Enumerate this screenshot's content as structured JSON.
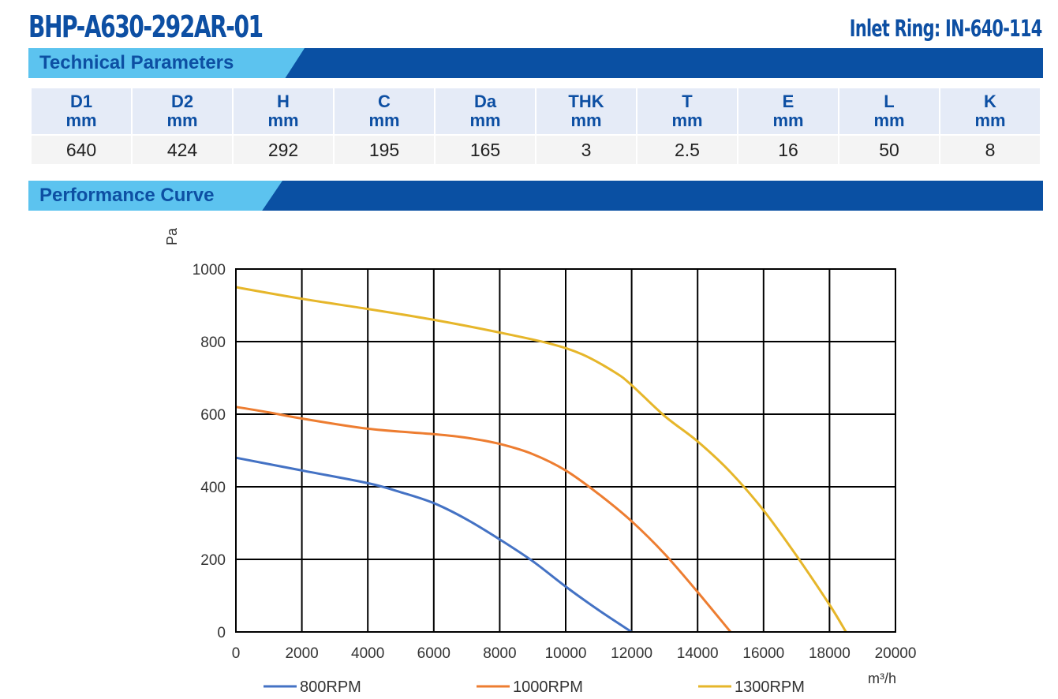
{
  "header": {
    "model": "BHP-A630-292AR-01",
    "inlet_ring": "Inlet Ring: IN-640-114"
  },
  "sections": {
    "technical": "Technical Parameters",
    "performance": "Performance Curve"
  },
  "colors": {
    "brand_blue": "#0a50a3",
    "tab_light_blue": "#5cc3ef"
  },
  "params": {
    "columns": [
      {
        "name": "D1",
        "unit": "mm",
        "value": "640"
      },
      {
        "name": "D2",
        "unit": "mm",
        "value": "424"
      },
      {
        "name": "H",
        "unit": "mm",
        "value": "292"
      },
      {
        "name": "C",
        "unit": "mm",
        "value": "195"
      },
      {
        "name": "Da",
        "unit": "mm",
        "value": "165"
      },
      {
        "name": "THK",
        "unit": "mm",
        "value": "3"
      },
      {
        "name": "T",
        "unit": "mm",
        "value": "2.5"
      },
      {
        "name": "E",
        "unit": "mm",
        "value": "16"
      },
      {
        "name": "L",
        "unit": "mm",
        "value": "50"
      },
      {
        "name": "K",
        "unit": "mm",
        "value": "8"
      }
    ]
  },
  "chart_data": {
    "type": "line",
    "title": "",
    "xlabel": "m³/h",
    "ylabel": "Pa",
    "xlim": [
      0,
      20000
    ],
    "ylim": [
      0,
      1000
    ],
    "xticks": [
      0,
      2000,
      4000,
      6000,
      8000,
      10000,
      12000,
      14000,
      16000,
      18000,
      20000
    ],
    "yticks": [
      0,
      200,
      400,
      600,
      800,
      1000
    ],
    "grid": true,
    "legend_position": "bottom",
    "series": [
      {
        "name": "800RPM",
        "color": "#4472c4",
        "points": [
          [
            0,
            480
          ],
          [
            2000,
            445
          ],
          [
            4000,
            410
          ],
          [
            5000,
            385
          ],
          [
            6000,
            355
          ],
          [
            7000,
            310
          ],
          [
            8000,
            255
          ],
          [
            9000,
            195
          ],
          [
            10000,
            125
          ],
          [
            11000,
            60
          ],
          [
            12000,
            0
          ]
        ]
      },
      {
        "name": "1000RPM",
        "color": "#ed7d31",
        "points": [
          [
            0,
            620
          ],
          [
            1000,
            605
          ],
          [
            2000,
            588
          ],
          [
            4000,
            560
          ],
          [
            6000,
            545
          ],
          [
            7000,
            535
          ],
          [
            8000,
            518
          ],
          [
            9000,
            490
          ],
          [
            10000,
            445
          ],
          [
            11000,
            380
          ],
          [
            12000,
            305
          ],
          [
            13000,
            215
          ],
          [
            14000,
            110
          ],
          [
            15000,
            0
          ]
        ]
      },
      {
        "name": "1300RPM",
        "color": "#e6b62a",
        "points": [
          [
            0,
            950
          ],
          [
            2000,
            918
          ],
          [
            4000,
            890
          ],
          [
            6000,
            860
          ],
          [
            8000,
            825
          ],
          [
            9500,
            795
          ],
          [
            10500,
            765
          ],
          [
            11500,
            715
          ],
          [
            12000,
            680
          ],
          [
            13000,
            595
          ],
          [
            14000,
            525
          ],
          [
            15000,
            440
          ],
          [
            16000,
            335
          ],
          [
            17000,
            210
          ],
          [
            18000,
            75
          ],
          [
            18500,
            0
          ]
        ]
      }
    ]
  }
}
